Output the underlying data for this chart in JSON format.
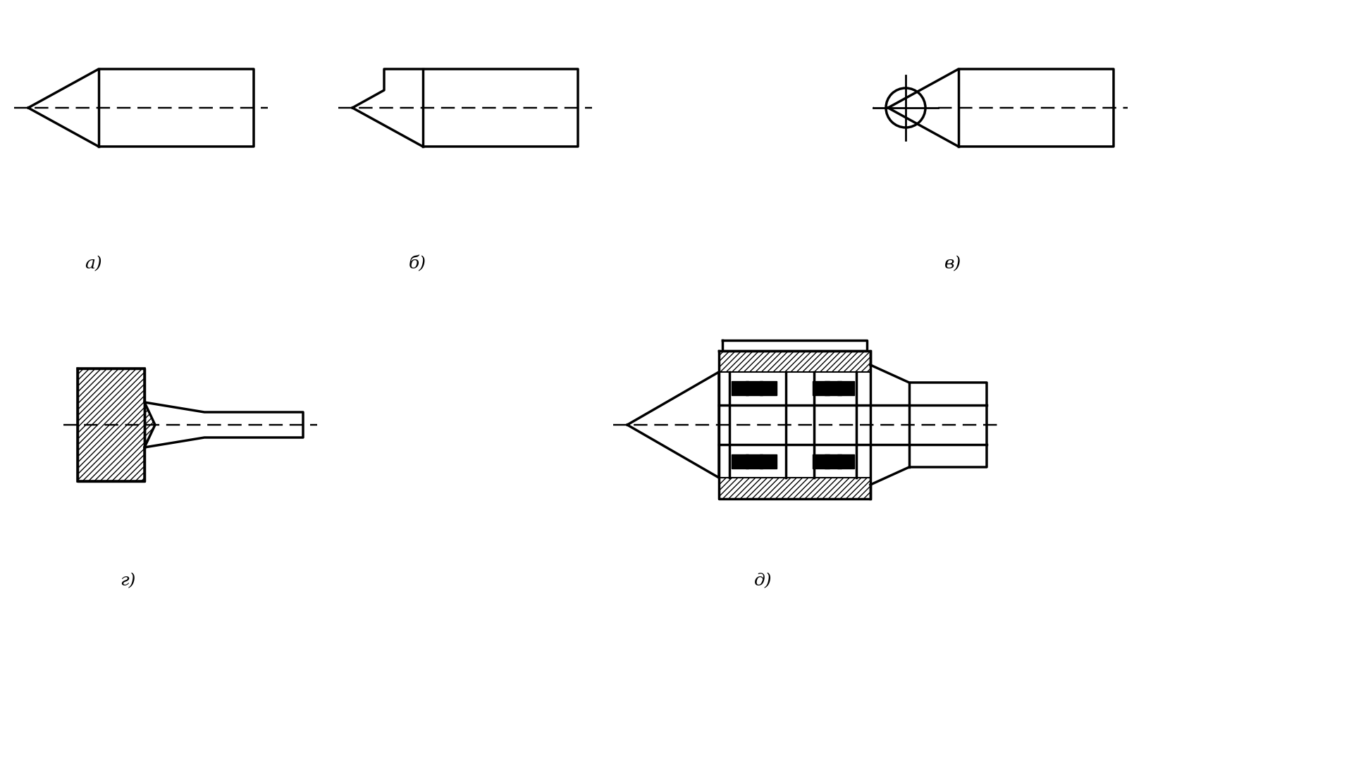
{
  "bg_color": "#ffffff",
  "line_color": "#000000",
  "lw": 2.5,
  "labels": {
    "a": "а)",
    "b": "б)",
    "v": "в)",
    "g": "г)",
    "d": "д)"
  },
  "label_fontsize": 18,
  "figsize": [
    19.41,
    10.83
  ],
  "dpi": 100
}
